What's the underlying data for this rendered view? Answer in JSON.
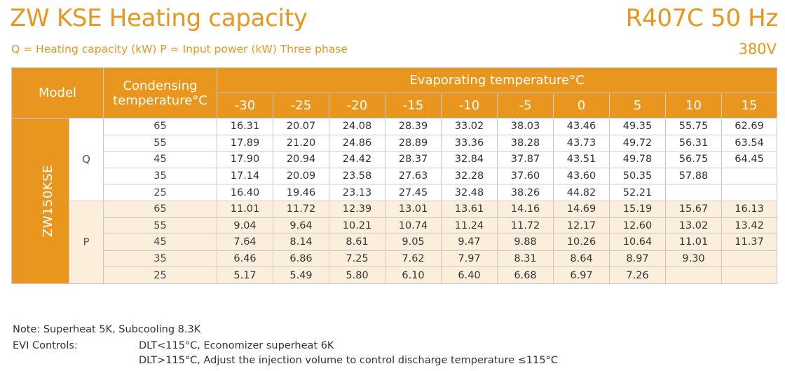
{
  "header": {
    "title": "ZW KSE Heating capacity",
    "refrigerant": "R407C 50 Hz",
    "subtitle": "Q = Heating capacity (kW) P = Input power (kW) Three phase",
    "voltage": "380V"
  },
  "table": {
    "model_header": "Model",
    "condensing_header": "Condensing temperature°C",
    "evaporating_header": "Evaporating temperature°C",
    "evap_temps": [
      "-30",
      "-25",
      "-20",
      "-15",
      "-10",
      "-5",
      "0",
      "5",
      "10",
      "15"
    ],
    "model_name": "ZW150KSE",
    "q": {
      "label": "Q",
      "rows": [
        {
          "cond": "65",
          "values": [
            "16.31",
            "20.07",
            "24.08",
            "28.39",
            "33.02",
            "38.03",
            "43.46",
            "49.35",
            "55.75",
            "62.69"
          ]
        },
        {
          "cond": "55",
          "values": [
            "17.89",
            "21.20",
            "24.86",
            "28.89",
            "33.36",
            "38.28",
            "43.73",
            "49.72",
            "56.31",
            "63.54"
          ]
        },
        {
          "cond": "45",
          "values": [
            "17.90",
            "20.94",
            "24.42",
            "28.37",
            "32.84",
            "37.87",
            "43.51",
            "49.78",
            "56.75",
            "64.45"
          ]
        },
        {
          "cond": "35",
          "values": [
            "17.14",
            "20.09",
            "23.58",
            "27.63",
            "32.28",
            "37.60",
            "43.60",
            "50.35",
            "57.88",
            ""
          ]
        },
        {
          "cond": "25",
          "values": [
            "16.40",
            "19.46",
            "23.13",
            "27.45",
            "32.48",
            "38.26",
            "44.82",
            "52.21",
            "",
            ""
          ]
        }
      ]
    },
    "p": {
      "label": "P",
      "rows": [
        {
          "cond": "65",
          "values": [
            "11.01",
            "11.72",
            "12.39",
            "13.01",
            "13.61",
            "14.16",
            "14.69",
            "15.19",
            "15.67",
            "16.13"
          ]
        },
        {
          "cond": "55",
          "values": [
            "9.04",
            "9.64",
            "10.21",
            "10.74",
            "11.24",
            "11.72",
            "12.17",
            "12.60",
            "13.02",
            "13.42"
          ]
        },
        {
          "cond": "45",
          "values": [
            "7.64",
            "8.14",
            "8.61",
            "9.05",
            "9.47",
            "9.88",
            "10.26",
            "10.64",
            "11.01",
            "11.37"
          ]
        },
        {
          "cond": "35",
          "values": [
            "6.46",
            "6.86",
            "7.25",
            "7.62",
            "7.97",
            "8.31",
            "8.64",
            "8.97",
            "9.30",
            ""
          ]
        },
        {
          "cond": "25",
          "values": [
            "5.17",
            "5.49",
            "5.80",
            "6.10",
            "6.40",
            "6.68",
            "6.97",
            "7.26",
            "",
            ""
          ]
        }
      ]
    }
  },
  "notes": {
    "note": "Note: Superheat 5K, Subcooling 8.3K",
    "evi_label": "EVI Controls:",
    "evi_line1": "DLT<115°C, Economizer superheat 6K",
    "evi_line2": "DLT>115°C, Adjust the injection volume to control discharge temperature ≤115°C"
  },
  "colors": {
    "accent": "#e8961e",
    "p_row_bg": "#fbeeda"
  }
}
